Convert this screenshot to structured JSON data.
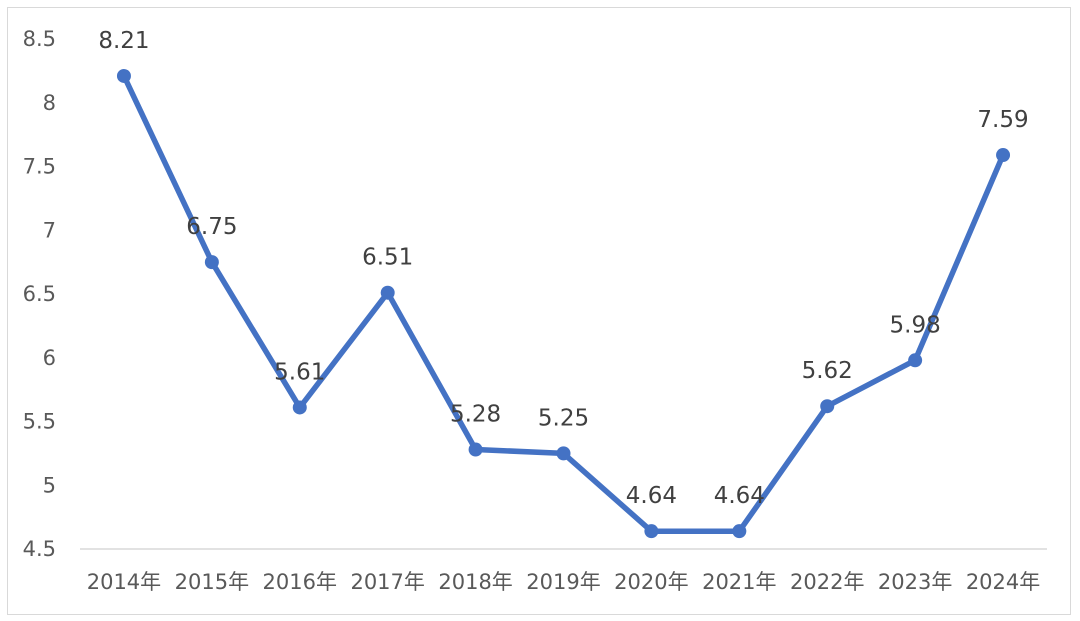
{
  "chart_data": {
    "type": "line",
    "title": "",
    "xlabel": "",
    "ylabel": "",
    "categories": [
      "2014年",
      "2015年",
      "2016年",
      "2017年",
      "2018年",
      "2019年",
      "2020年",
      "2021年",
      "2022年",
      "2023年",
      "2024年"
    ],
    "series": [
      {
        "values": [
          8.21,
          6.75,
          5.61,
          6.51,
          5.28,
          5.25,
          4.64,
          4.64,
          5.62,
          5.98,
          7.59
        ],
        "labels": [
          "8.21",
          "6.75",
          "5.61",
          "6.51",
          "5.28",
          "5.25",
          "4.64",
          "4.64",
          "5.62",
          "5.98",
          "7.59"
        ],
        "color": "#4472c4"
      }
    ],
    "ylim": [
      4.5,
      8.5
    ],
    "yticks": [
      "4.5",
      "5",
      "5.5",
      "6",
      "6.5",
      "7",
      "7.5",
      "8",
      "8.5"
    ],
    "grid": false,
    "legend": "none",
    "colors": {
      "axis": "#d9d9d9",
      "line": "#4472c4"
    }
  }
}
